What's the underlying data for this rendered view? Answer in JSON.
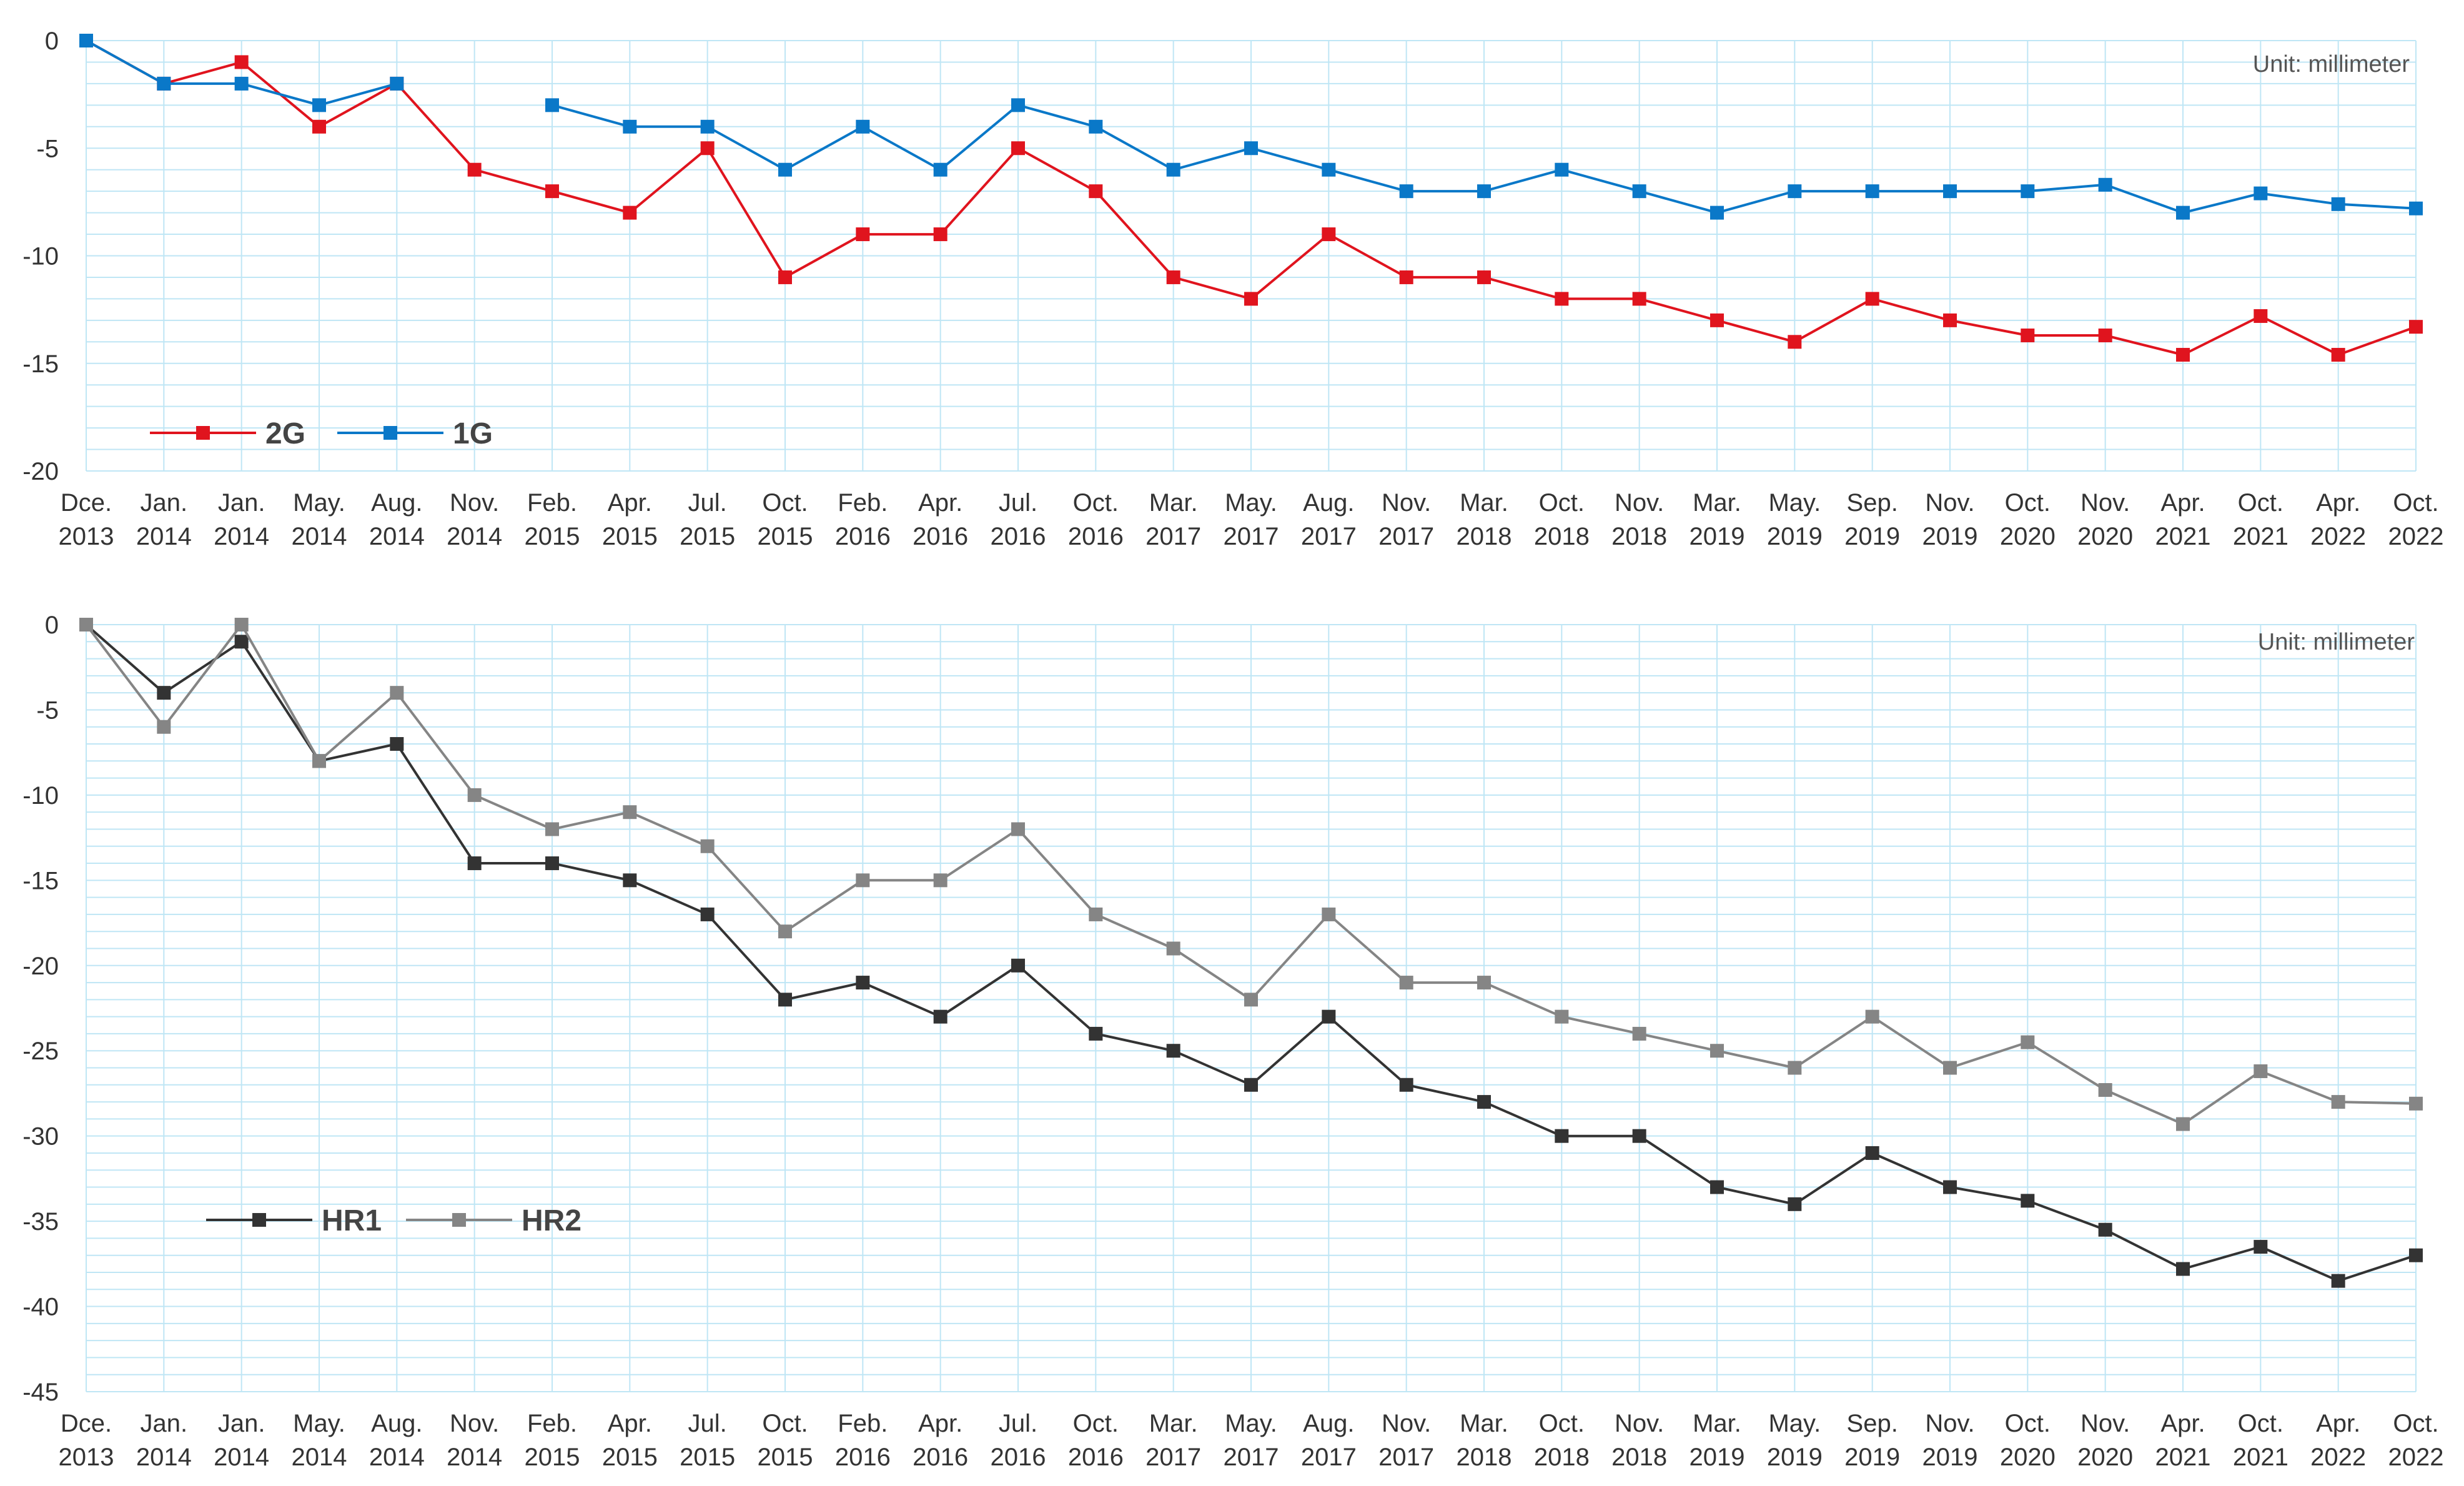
{
  "chart_data": [
    {
      "type": "line",
      "title": "",
      "annotation": "Unit: millimeter",
      "xlabel": "",
      "ylabel": "",
      "ylim": [
        -20,
        0
      ],
      "yticks": [
        "0",
        "-5",
        "-10",
        "-15",
        "-20"
      ],
      "grid": true,
      "legend_position": "bottom-left",
      "categories": [
        [
          "Dce.",
          "2013"
        ],
        [
          "Jan.",
          "2014"
        ],
        [
          "Jan.",
          "2014"
        ],
        [
          "May.",
          "2014"
        ],
        [
          "Aug.",
          "2014"
        ],
        [
          "Nov.",
          "2014"
        ],
        [
          "Feb.",
          "2015"
        ],
        [
          "Apr.",
          "2015"
        ],
        [
          "Jul.",
          "2015"
        ],
        [
          "Oct.",
          "2015"
        ],
        [
          "Feb.",
          "2016"
        ],
        [
          "Apr.",
          "2016"
        ],
        [
          "Jul.",
          "2016"
        ],
        [
          "Oct.",
          "2016"
        ],
        [
          "Mar.",
          "2017"
        ],
        [
          "May.",
          "2017"
        ],
        [
          "Aug.",
          "2017"
        ],
        [
          "Nov.",
          "2017"
        ],
        [
          "Mar.",
          "2018"
        ],
        [
          "Oct.",
          "2018"
        ],
        [
          "Nov.",
          "2018"
        ],
        [
          "Mar.",
          "2019"
        ],
        [
          "May.",
          "2019"
        ],
        [
          "Sep.",
          "2019"
        ],
        [
          "Nov.",
          "2019"
        ],
        [
          "Oct.",
          "2020"
        ],
        [
          "Nov.",
          "2020"
        ],
        [
          "Apr.",
          "2021"
        ],
        [
          "Oct.",
          "2021"
        ],
        [
          "Apr.",
          "2022"
        ],
        [
          "Oct.",
          "2022"
        ]
      ],
      "series": [
        {
          "name": "2G",
          "color": "#e0141e",
          "values": [
            0,
            -2,
            -1,
            -4,
            -2,
            -6,
            -7,
            -8,
            -5,
            -11,
            -9,
            -9,
            -5,
            -7,
            -11,
            -12,
            -9,
            -11,
            -11,
            -12,
            -12,
            -13,
            -14,
            -12,
            -13,
            -13.7,
            -13.7,
            -14.6,
            -12.8,
            -14.6,
            -13.3
          ]
        },
        {
          "name": "1G",
          "color": "#0a78c8",
          "values": [
            0,
            -2,
            -2,
            -3,
            -2,
            null,
            -3,
            -4,
            -4,
            -6,
            -4,
            -6,
            -3,
            -4,
            -6,
            -5,
            -6,
            -7,
            -7,
            -6,
            -7,
            -8,
            -7,
            -7,
            -7,
            -7,
            -6.7,
            -8,
            -7.1,
            -7.6,
            -7.8
          ]
        }
      ]
    },
    {
      "type": "line",
      "title": "",
      "annotation": "Unit: millimeter",
      "xlabel": "",
      "ylabel": "",
      "ylim": [
        -45,
        0
      ],
      "yticks": [
        "0",
        "-5",
        "-10",
        "-15",
        "-20",
        "-25",
        "-30",
        "-35",
        "-40",
        "-45"
      ],
      "grid": true,
      "legend_position": "bottom-left",
      "categories": [
        [
          "Dce.",
          "2013"
        ],
        [
          "Jan.",
          "2014"
        ],
        [
          "Jan.",
          "2014"
        ],
        [
          "May.",
          "2014"
        ],
        [
          "Aug.",
          "2014"
        ],
        [
          "Nov.",
          "2014"
        ],
        [
          "Feb.",
          "2015"
        ],
        [
          "Apr.",
          "2015"
        ],
        [
          "Jul.",
          "2015"
        ],
        [
          "Oct.",
          "2015"
        ],
        [
          "Feb.",
          "2016"
        ],
        [
          "Apr.",
          "2016"
        ],
        [
          "Jul.",
          "2016"
        ],
        [
          "Oct.",
          "2016"
        ],
        [
          "Mar.",
          "2017"
        ],
        [
          "May.",
          "2017"
        ],
        [
          "Aug.",
          "2017"
        ],
        [
          "Nov.",
          "2017"
        ],
        [
          "Mar.",
          "2018"
        ],
        [
          "Oct.",
          "2018"
        ],
        [
          "Nov.",
          "2018"
        ],
        [
          "Mar.",
          "2019"
        ],
        [
          "May.",
          "2019"
        ],
        [
          "Sep.",
          "2019"
        ],
        [
          "Nov.",
          "2019"
        ],
        [
          "Oct.",
          "2020"
        ],
        [
          "Nov.",
          "2020"
        ],
        [
          "Apr.",
          "2021"
        ],
        [
          "Oct.",
          "2021"
        ],
        [
          "Apr.",
          "2022"
        ],
        [
          "Oct.",
          "2022"
        ]
      ],
      "series": [
        {
          "name": "HR1",
          "color": "#333333",
          "values": [
            0,
            -4,
            -1,
            -8,
            -7,
            -14,
            -14,
            -15,
            -17,
            -22,
            -21,
            -23,
            -20,
            -24,
            -25,
            -27,
            -23,
            -27,
            -28,
            -30,
            -30,
            -33,
            -34,
            -31,
            -33,
            -33.8,
            -35.5,
            -37.8,
            -36.5,
            -38.5,
            -37
          ]
        },
        {
          "name": "HR2",
          "color": "#858585",
          "values": [
            0,
            -6,
            0,
            -8,
            -4,
            -10,
            -12,
            -11,
            -13,
            -18,
            -15,
            -15,
            -12,
            -17,
            -19,
            -22,
            -17,
            -21,
            -21,
            -23,
            -24,
            -25,
            -26,
            -23,
            -26,
            -24.5,
            -27.3,
            -29.3,
            -26.2,
            -28,
            -28.1
          ]
        }
      ]
    }
  ]
}
